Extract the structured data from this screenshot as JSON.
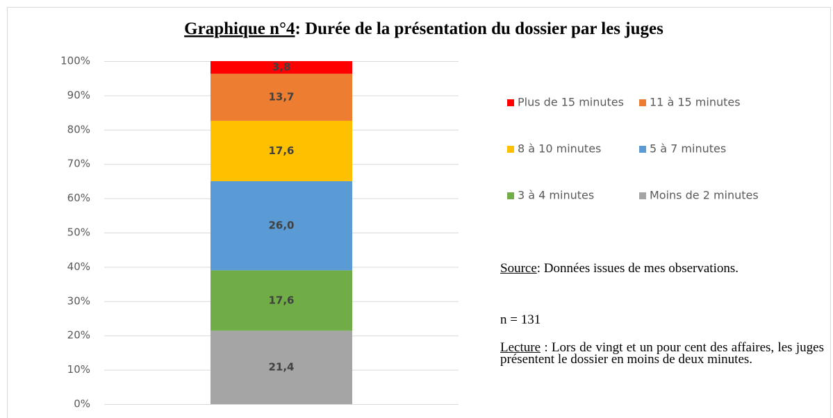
{
  "chart_data": {
    "type": "stacked_bar",
    "title": [
      "Graphique n°4",
      ": Durée de la présentation du dossier par les juges"
    ],
    "categories": [
      null
    ],
    "series": [
      {
        "name": "Moins de 2 minutes",
        "color": "#a5a5a5",
        "values": [
          21.4
        ],
        "value_labels": [
          "21,4"
        ]
      },
      {
        "name": "3 à 4 minutes",
        "color": "#70ad47",
        "values": [
          17.6
        ],
        "value_labels": [
          "17,6"
        ]
      },
      {
        "name": "5 à 7 minutes",
        "color": "#5b9bd5",
        "values": [
          26.0
        ],
        "value_labels": [
          "26,0"
        ]
      },
      {
        "name": "8 à 10 minutes",
        "color": "#ffc000",
        "values": [
          17.6
        ],
        "value_labels": [
          "17,6"
        ]
      },
      {
        "name": "11 à 15 minutes",
        "color": "#ed7d31",
        "values": [
          13.7
        ],
        "value_labels": [
          "13,7"
        ]
      },
      {
        "name": "Plus de 15 minutes",
        "color": "#ff0000",
        "values": [
          3.8
        ],
        "value_labels": [
          "3,8"
        ]
      }
    ],
    "ylim": [
      0,
      100
    ],
    "yticks": [
      {
        "value": 0,
        "label": "0%"
      },
      {
        "value": 10,
        "label": "10%"
      },
      {
        "value": 20,
        "label": "20%"
      },
      {
        "value": 30,
        "label": "30%"
      },
      {
        "value": 40,
        "label": "40%"
      },
      {
        "value": 50,
        "label": "50%"
      },
      {
        "value": 60,
        "label": "60%"
      },
      {
        "value": 70,
        "label": "70%"
      },
      {
        "value": 80,
        "label": "80%"
      },
      {
        "value": 90,
        "label": "90%"
      },
      {
        "value": 100,
        "label": "100%"
      }
    ],
    "grid": true,
    "legend": "right",
    "annotations": {
      "source_label": "Source",
      "source_text": ": Données issues de mes observations.",
      "n": "n = 131",
      "lecture_label": "Lecture",
      "lecture_text": " : Lors de vingt et un pour cent des affaires, les juges présentent le dossier en moins de deux minutes."
    }
  }
}
